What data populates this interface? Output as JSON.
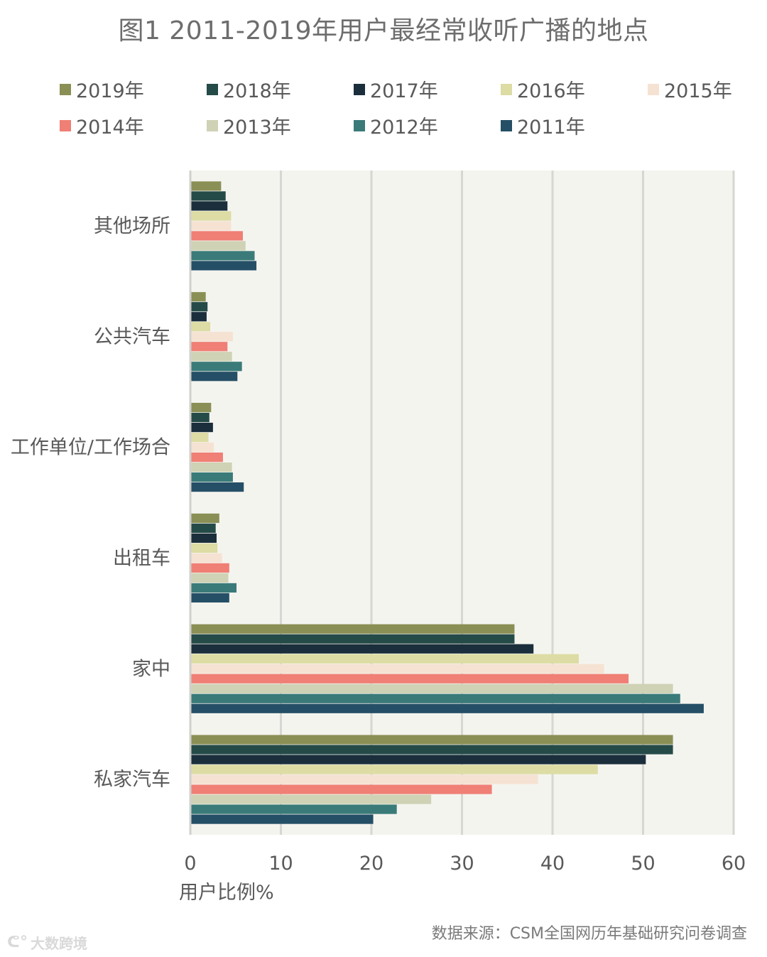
{
  "chart_data": {
    "type": "bar",
    "orientation": "horizontal",
    "title": "图1 2011-2019年用户最经常收听广播的地点",
    "xlabel": "用户比例%",
    "ylabel": "",
    "xlim": [
      0,
      60
    ],
    "xticks": [
      "0",
      "10",
      "20",
      "30",
      "40",
      "50",
      "60"
    ],
    "grid": true,
    "legend_position": "top",
    "categories": [
      "其他场所",
      "公共汽车",
      "工作单位/工作场合",
      "出租车",
      "家中",
      "私家汽车"
    ],
    "series": [
      {
        "name": "2019年",
        "color": "#8a8f55",
        "values": [
          3.4,
          1.7,
          2.3,
          3.2,
          35.8,
          53.3
        ]
      },
      {
        "name": "2018年",
        "color": "#254b48",
        "values": [
          3.9,
          1.9,
          2.1,
          2.8,
          35.8,
          53.3
        ]
      },
      {
        "name": "2017年",
        "color": "#1b2e3c",
        "values": [
          4.1,
          1.8,
          2.5,
          2.9,
          37.9,
          50.3
        ]
      },
      {
        "name": "2016年",
        "color": "#dcdca4",
        "values": [
          4.5,
          2.2,
          2.0,
          3.0,
          42.9,
          45.0
        ]
      },
      {
        "name": "2015年",
        "color": "#f6e2d2",
        "values": [
          4.5,
          4.7,
          2.6,
          3.5,
          45.7,
          38.4
        ]
      },
      {
        "name": "2014年",
        "color": "#f07f75",
        "values": [
          5.8,
          4.1,
          3.6,
          4.3,
          48.4,
          33.3
        ]
      },
      {
        "name": "2013年",
        "color": "#cfd2b4",
        "values": [
          6.1,
          4.6,
          4.6,
          4.2,
          53.3,
          26.6
        ]
      },
      {
        "name": "2012年",
        "color": "#3a7b79",
        "values": [
          7.1,
          5.7,
          4.7,
          5.1,
          54.1,
          22.8
        ]
      },
      {
        "name": "2011年",
        "color": "#254f66",
        "values": [
          7.3,
          5.2,
          5.9,
          4.3,
          56.7,
          20.2
        ]
      }
    ]
  },
  "source": "数据来源：CSM全国网历年基础研究问卷调查",
  "watermark": "大数跨境",
  "watermark_icon": "weibo-logo-icon"
}
